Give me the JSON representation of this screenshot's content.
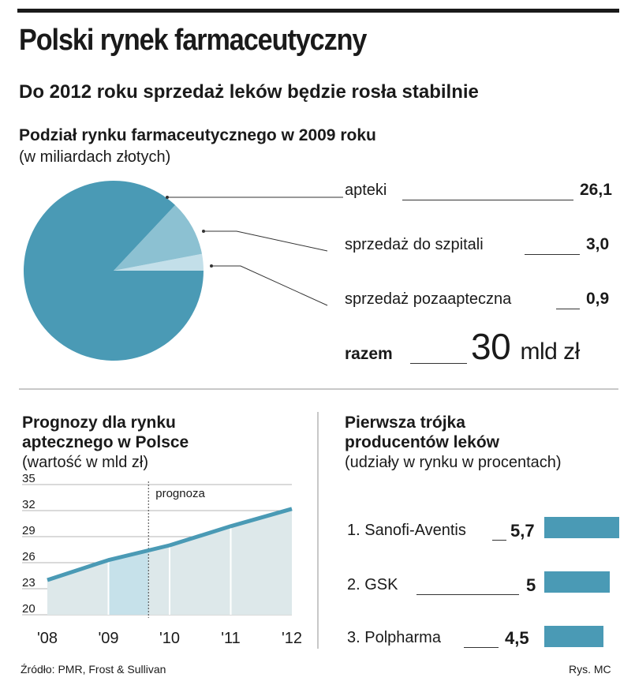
{
  "title": "Polski rynek farmaceutyczny",
  "subtitle": "Do 2012 roku sprzedaż leków będzie rosła stabilnie",
  "pie_section": {
    "title": "Podział rynku farmaceutycznego w 2009 roku",
    "unit": "(w miliardach złotych)",
    "total_label": "razem",
    "total_value": "30",
    "total_unit": "mld zł"
  },
  "forecast_section": {
    "title_line1": "Prognozy dla rynku",
    "title_line2": "aptecznego w Polsce",
    "unit": "(wartość w mld zł)",
    "forecast_label": "prognoza"
  },
  "producers_section": {
    "title_line1": "Pierwsza trójka",
    "title_line2": "producentów leków",
    "unit": "(udziały w rynku w procentach)"
  },
  "footer": {
    "source": "Źródło: PMR, Frost & Sullivan",
    "credit": "Rys. MC"
  },
  "colors": {
    "main": "#4a9ab5",
    "light": "#8cc1d2",
    "lighter": "#c3dfe9",
    "area_light": "#dde8ea",
    "area_dark": "#c6e1ea"
  },
  "chart_data": [
    {
      "type": "pie",
      "labels": [
        "apteki",
        "sprzedaż do szpitali",
        "sprzedaż pozaapteczna"
      ],
      "values": [
        26.1,
        3.0,
        0.9
      ],
      "value_labels": [
        "26,1",
        "3,0",
        "0,9"
      ]
    },
    {
      "type": "area",
      "categories": [
        "'08",
        "'09",
        "'10",
        "'11",
        "'12"
      ],
      "values": [
        24.0,
        26.3,
        28.0,
        30.2,
        32.2
      ],
      "yticks": [
        "35",
        "32",
        "29",
        "26",
        "23",
        "20"
      ],
      "ylim": [
        20,
        35
      ],
      "forecast_start": "'10"
    },
    {
      "type": "bar",
      "categories": [
        "1. Sanofi-Aventis",
        "2. GSK",
        "3. Polpharma"
      ],
      "values": [
        5.7,
        5.0,
        4.5
      ],
      "value_labels": [
        "5,7",
        "5",
        "4,5"
      ]
    }
  ]
}
